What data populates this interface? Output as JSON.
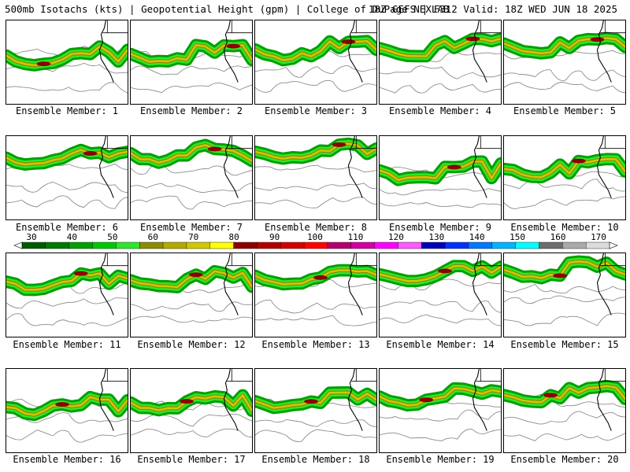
{
  "header": {
    "title_left": "500mb Isotachs (kts) | Geopotential Height (gpm) | College of DuPage NEXLAB",
    "title_right": "18Z GEFS | F312 Valid: 18Z WED JUN 18 2025"
  },
  "label_prefix": "Ensemble Member:",
  "members": [
    1,
    2,
    3,
    4,
    5,
    6,
    7,
    8,
    9,
    10,
    11,
    12,
    13,
    14,
    15,
    16,
    17,
    18,
    19,
    20
  ],
  "colorbar": {
    "ticks": [
      "30",
      "40",
      "50",
      "60",
      "70",
      "80",
      "90",
      "100",
      "110",
      "120",
      "130",
      "140",
      "150",
      "160",
      "170"
    ],
    "colors": [
      "#005a00",
      "#007a00",
      "#00a000",
      "#00c800",
      "#2ee62e",
      "#8c8c00",
      "#b4aa00",
      "#d2c800",
      "#ffff00",
      "#8c0000",
      "#b40000",
      "#d20000",
      "#ff0000",
      "#b4006e",
      "#d200a0",
      "#ff00ff",
      "#ff5aff",
      "#0000b4",
      "#0032ff",
      "#0078ff",
      "#00b4ff",
      "#00ffff",
      "#6e6e6e",
      "#aaaaaa",
      "#dcdcdc"
    ]
  }
}
